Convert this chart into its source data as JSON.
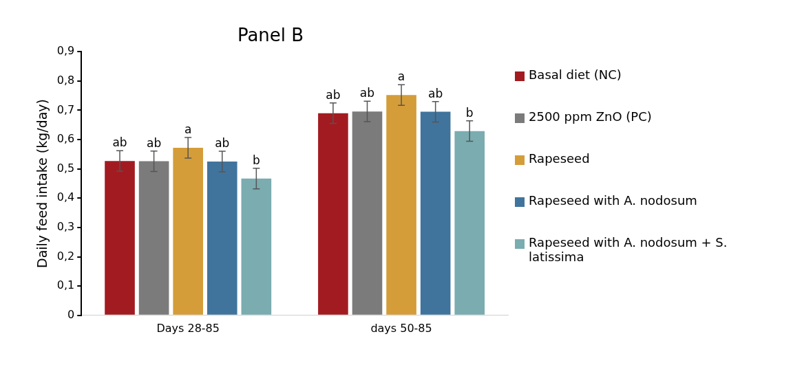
{
  "chart_data": {
    "type": "bar",
    "title": "Panel B",
    "ylabel": "Daily feed intake (kg/day)",
    "categories": [
      "Days 28-85",
      "days 50-85"
    ],
    "series": [
      {
        "name": "Basal diet (NC)",
        "color": "#a21b21",
        "values": [
          0.527,
          0.69
        ],
        "errors": [
          0.035,
          0.035
        ],
        "value_labels": [
          "ab",
          "ab"
        ]
      },
      {
        "name": "2500 ppm ZnO (PC)",
        "color": "#7b7b7b",
        "values": [
          0.526,
          0.696
        ],
        "errors": [
          0.035,
          0.035
        ],
        "value_labels": [
          "ab",
          "ab"
        ]
      },
      {
        "name": "Rapeseed",
        "color": "#d49d3a",
        "values": [
          0.572,
          0.752
        ],
        "errors": [
          0.035,
          0.035
        ],
        "value_labels": [
          "a",
          "a"
        ]
      },
      {
        "name": "Rapeseed with A. nodosum",
        "color": "#41749c",
        "values": [
          0.525,
          0.695
        ],
        "errors": [
          0.035,
          0.035
        ],
        "value_labels": [
          "ab",
          "ab"
        ]
      },
      {
        "name": "Rapeseed with A. nodosum + S. latissima",
        "color": "#7aacb0",
        "values": [
          0.467,
          0.629
        ],
        "errors": [
          0.035,
          0.035
        ],
        "value_labels": [
          "b",
          "b"
        ]
      }
    ],
    "ylim": [
      0,
      0.9
    ],
    "yticks": [
      {
        "value": 0,
        "label": "0"
      },
      {
        "value": 0.1,
        "label": "0,1"
      },
      {
        "value": 0.2,
        "label": "0,2"
      },
      {
        "value": 0.3,
        "label": "0,3"
      },
      {
        "value": 0.4,
        "label": "0,4"
      },
      {
        "value": 0.5,
        "label": "0,5"
      },
      {
        "value": 0.6,
        "label": "0,6"
      },
      {
        "value": 0.7,
        "label": "0,7"
      },
      {
        "value": 0.8,
        "label": "0,8"
      },
      {
        "value": 0.9,
        "label": "0,9"
      }
    ],
    "grid": false,
    "legend": "right"
  }
}
